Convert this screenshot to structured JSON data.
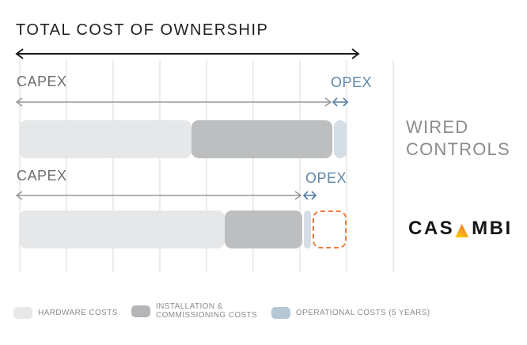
{
  "title": "TOTAL COST OF OWNERSHIP",
  "rows": [
    {
      "label": "WIRED\nCONTROLS",
      "capex": "CAPEX",
      "opex": "OPEX"
    },
    {
      "label": "CASAMBI",
      "logo": {
        "pre": "CAS",
        "triangle": "casambi-orange-triangle-A",
        "post": "MBI"
      },
      "capex": "CAPEX",
      "opex": "OPEX"
    }
  ],
  "legend": {
    "hardware": "HARDWARE COSTS",
    "installation": "INSTALLATION &\nCOMMISSIONING COSTS",
    "operational": "OPERATIONAL COSTS (5 YEARS)"
  },
  "colors": {
    "hardware": "#e6e7e8",
    "installation": "#bcbec0",
    "operational_bar": "#d5dee6",
    "operational_legend": "#b6c7d4",
    "capex_text": "#6d6e70",
    "opex_accent": "#5f87a8",
    "gray_arrow": "#95979a",
    "dashed_outline": "#ef7d3a",
    "casambi_orange": "#f58220",
    "casambi_yellow": "#ffd005",
    "title_text": "#1f1f1f",
    "muted_text": "#8a8b8e"
  },
  "chart_data": {
    "type": "bar",
    "subtype": "horizontal-stacked",
    "title": "TOTAL COST OF OWNERSHIP",
    "categories": [
      "WIRED CONTROLS",
      "CASAMBI"
    ],
    "unit": "percent of wired-controls total cost of ownership (estimated from bar lengths)",
    "series": [
      {
        "name": "HARDWARE COSTS",
        "values": [
          53,
          63
        ]
      },
      {
        "name": "INSTALLATION & COMMISSIONING COSTS",
        "values": [
          43,
          24
        ]
      },
      {
        "name": "OPERATIONAL COSTS (5 YEARS)",
        "values": [
          4,
          2
        ]
      }
    ],
    "dashed_extension_pct": 10.5,
    "dashed_extension_note": "Orange dashed outline on CASAMBI row marks the remaining ~11% gap vs wired-controls TCO (cost advantage)",
    "annotations": {
      "capex_spans": "CAPEX arrow covers hardware + installation/commissioning segments",
      "opex_spans": "OPEX arrow covers operational costs segment"
    },
    "grid": true,
    "legend_position": "bottom"
  }
}
